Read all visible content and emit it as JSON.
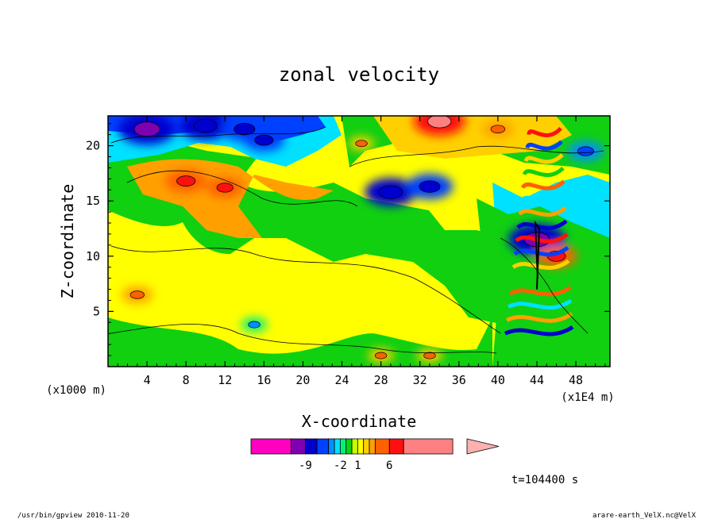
{
  "chart_data": {
    "type": "heatmap",
    "title": "zonal velocity",
    "xlabel": "X-coordinate",
    "ylabel": "Z-coordinate",
    "x_units": "(x1E4 m)",
    "y_units": "(x1000 m)",
    "xlim": [
      0,
      51.5
    ],
    "ylim": [
      0,
      22.7
    ],
    "x_ticks": [
      4,
      8,
      12,
      16,
      20,
      24,
      28,
      32,
      36,
      40,
      44,
      48
    ],
    "y_ticks": [
      5,
      10,
      15,
      20
    ],
    "time_label": "t=104400 s",
    "colorbar": {
      "levels": [
        -20,
        -12,
        -9,
        -6,
        -4,
        -3,
        -2,
        -1,
        0,
        1,
        2,
        3,
        4,
        6,
        9,
        20
      ],
      "colors": [
        "#ff00c0",
        "#7f00b0",
        "#0000ce",
        "#0040ff",
        "#0090ff",
        "#00e0ff",
        "#00f080",
        "#10d010",
        "#c0ff00",
        "#ffff00",
        "#ffd000",
        "#ffa000",
        "#ff6000",
        "#ff1010",
        "#ff8080",
        "#ffb0b0"
      ],
      "tick_labels": [
        "-9",
        "-2",
        "1",
        "6"
      ]
    },
    "features": [
      {
        "x": 4,
        "z": 21.5,
        "value": -8
      },
      {
        "x": 10,
        "z": 21.8,
        "value": -7
      },
      {
        "x": 16,
        "z": 20.5,
        "value": -5
      },
      {
        "x": 14,
        "z": 21.5,
        "value": -6
      },
      {
        "x": 8,
        "z": 16.8,
        "value": 5
      },
      {
        "x": 12,
        "z": 16.2,
        "value": 4
      },
      {
        "x": 29,
        "z": 15.8,
        "value": -7
      },
      {
        "x": 33,
        "z": 16.3,
        "value": -6
      },
      {
        "x": 34,
        "z": 22.2,
        "value": 7
      },
      {
        "x": 40,
        "z": 21.5,
        "value": 3
      },
      {
        "x": 26,
        "z": 20.2,
        "value": 2
      },
      {
        "x": 44,
        "z": 11.5,
        "value": -8
      },
      {
        "x": 46,
        "z": 10,
        "value": 5
      },
      {
        "x": 49,
        "z": 19.5,
        "value": -4
      },
      {
        "x": 3,
        "z": 6.5,
        "value": 3
      },
      {
        "x": 15,
        "z": 3.8,
        "value": -2
      },
      {
        "x": 28,
        "z": 1,
        "value": 2
      },
      {
        "x": 33,
        "z": 1,
        "value": 2
      }
    ]
  },
  "footer": {
    "left": "/usr/bin/gpview  2010-11-20",
    "right": "arare-earth_VelX.nc@VelX"
  }
}
